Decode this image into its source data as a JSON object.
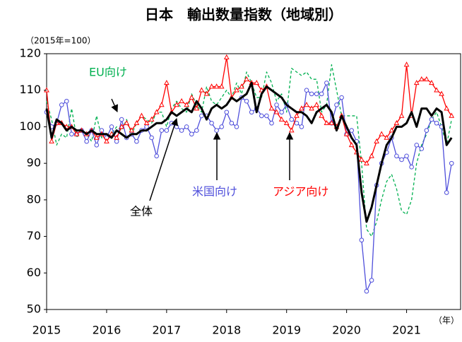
{
  "chart_data": {
    "type": "line",
    "title": "日本　輸出数量指数（地域別）",
    "y_unit_note": "（2015年=100）",
    "x_unit_note": "（年）",
    "x": [
      2015,
      2015.083,
      2015.167,
      2015.25,
      2015.333,
      2015.417,
      2015.5,
      2015.583,
      2015.667,
      2015.75,
      2015.833,
      2015.917,
      2016,
      2016.083,
      2016.167,
      2016.25,
      2016.333,
      2016.417,
      2016.5,
      2016.583,
      2016.667,
      2016.75,
      2016.833,
      2016.917,
      2017,
      2017.083,
      2017.167,
      2017.25,
      2017.333,
      2017.417,
      2017.5,
      2017.583,
      2017.667,
      2017.75,
      2017.833,
      2017.917,
      2018,
      2018.083,
      2018.167,
      2018.25,
      2018.333,
      2018.417,
      2018.5,
      2018.583,
      2018.667,
      2018.75,
      2018.833,
      2018.917,
      2019,
      2019.083,
      2019.167,
      2019.25,
      2019.333,
      2019.417,
      2019.5,
      2019.583,
      2019.667,
      2019.75,
      2019.833,
      2019.917,
      2020,
      2020.083,
      2020.167,
      2020.25,
      2020.333,
      2020.417,
      2020.5,
      2020.583,
      2020.667,
      2020.75,
      2020.833,
      2020.917,
      2021,
      2021.083,
      2021.167,
      2021.25,
      2021.333,
      2021.417,
      2021.5,
      2021.583,
      2021.667,
      2021.75
    ],
    "series": [
      {
        "name": "EU向け",
        "color": "#00b050",
        "dash": true,
        "marker": "none",
        "width": 1.3,
        "values": [
          107,
          102,
          95,
          98,
          97,
          105,
          97,
          99,
          98,
          96,
          103,
          97,
          97,
          98,
          100,
          99,
          102,
          98,
          101,
          103,
          102,
          101,
          104,
          104,
          100,
          105,
          107,
          105,
          104,
          109,
          106,
          104,
          111,
          107,
          106,
          108,
          110,
          108,
          112,
          109,
          115,
          112,
          108,
          108,
          115,
          112,
          107,
          109,
          104,
          116,
          115,
          114,
          115,
          113,
          113,
          104,
          106,
          117,
          110,
          103,
          103,
          103,
          103,
          90,
          72,
          70,
          74,
          80,
          85,
          87,
          83,
          77,
          76,
          80,
          90,
          95,
          98,
          102,
          104,
          100,
          95,
          102
        ]
      },
      {
        "name": "米国向け",
        "color": "#4f4fdb",
        "dash": false,
        "marker": "circle",
        "width": 1.3,
        "values": [
          104,
          100,
          101,
          106,
          107,
          98,
          98,
          99,
          96,
          99,
          95,
          99,
          97,
          100,
          96,
          102,
          97,
          98,
          96,
          99,
          100,
          97,
          92,
          99,
          99,
          101,
          100,
          99,
          100,
          98,
          99,
          103,
          103,
          101,
          99,
          100,
          104,
          101,
          100,
          108,
          107,
          104,
          105,
          103,
          103,
          101,
          106,
          104,
          106,
          102,
          101,
          100,
          110,
          109,
          109,
          109,
          112,
          101,
          106,
          108,
          98,
          99,
          96,
          69,
          55,
          58,
          84,
          90,
          93,
          97,
          92,
          91,
          92,
          89,
          95,
          94,
          99,
          102,
          101,
          100,
          82,
          90
        ]
      },
      {
        "name": "アジア向け",
        "color": "#ff0000",
        "dash": false,
        "marker": "triangle",
        "width": 1.3,
        "values": [
          110,
          96,
          101,
          101,
          100,
          100,
          98,
          99,
          98,
          99,
          97,
          98,
          96,
          98,
          97,
          100,
          101,
          99,
          101,
          103,
          101,
          102,
          104,
          106,
          112,
          104,
          106,
          107,
          106,
          108,
          105,
          110,
          109,
          111,
          111,
          111,
          119,
          108,
          110,
          111,
          113,
          112,
          112,
          110,
          111,
          105,
          104,
          102,
          101,
          99,
          103,
          105,
          106,
          105,
          106,
          103,
          101,
          101,
          100,
          103,
          98,
          95,
          93,
          91,
          90,
          92,
          96,
          98,
          97,
          99,
          101,
          103,
          117,
          103,
          112,
          113,
          113,
          112,
          110,
          109,
          105,
          103
        ]
      },
      {
        "name": "全体",
        "color": "#000000",
        "dash": false,
        "marker": "none",
        "width": 3,
        "values": [
          105,
          97,
          102,
          101,
          99,
          100,
          99,
          99,
          98,
          99,
          98,
          98,
          98,
          97,
          99,
          98,
          97,
          98,
          98,
          99,
          99,
          100,
          101,
          101,
          102,
          104,
          103,
          104,
          105,
          104,
          107,
          105,
          102,
          105,
          106,
          105,
          106,
          108,
          107,
          108,
          109,
          112,
          104,
          109,
          111,
          110,
          109,
          108,
          106,
          105,
          104,
          104,
          103,
          101,
          104,
          105,
          106,
          104,
          99,
          103,
          100,
          97,
          95,
          82,
          74,
          78,
          84,
          90,
          95,
          97,
          100,
          100,
          101,
          104,
          100,
          105,
          105,
          103,
          105,
          104,
          95,
          97
        ]
      }
    ],
    "xlim": [
      2015,
      2021.9
    ],
    "xticks": [
      2015,
      2016,
      2017,
      2018,
      2019,
      2020,
      2021
    ],
    "ylim": [
      50,
      120
    ],
    "yticks": [
      50,
      60,
      70,
      80,
      90,
      100,
      110,
      120
    ],
    "grid": false
  }
}
